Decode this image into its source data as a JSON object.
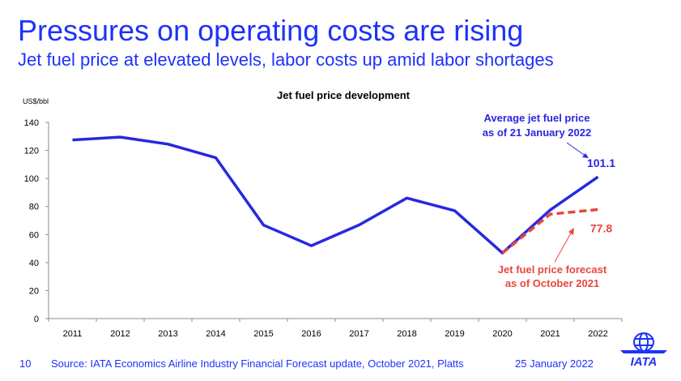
{
  "header": {
    "title": "Pressures on operating costs are rising",
    "subtitle": "Jet fuel price at elevated levels, labor costs up amid labor shortages"
  },
  "chart_data": {
    "type": "line",
    "title": "Jet fuel price development",
    "ylabel": "US$/bbl",
    "xlabel": "",
    "ylim": [
      0,
      140
    ],
    "yticks": [
      0,
      20,
      40,
      60,
      80,
      100,
      120,
      140
    ],
    "categories": [
      "2011",
      "2012",
      "2013",
      "2014",
      "2015",
      "2016",
      "2017",
      "2018",
      "2019",
      "2020",
      "2021",
      "2022"
    ],
    "series": [
      {
        "name": "Average jet fuel price",
        "style": "solid",
        "color": "#2828e0",
        "points": [
          {
            "x": "2011",
            "y": 127.5
          },
          {
            "x": "2012",
            "y": 129.5
          },
          {
            "x": "2013",
            "y": 124.5
          },
          {
            "x": "2014",
            "y": 114.8
          },
          {
            "x": "2015",
            "y": 66.7
          },
          {
            "x": "2016",
            "y": 52.0
          },
          {
            "x": "2017",
            "y": 66.8
          },
          {
            "x": "2018",
            "y": 86.0
          },
          {
            "x": "2019",
            "y": 77.0
          },
          {
            "x": "2020",
            "y": 46.8
          },
          {
            "x": "2021",
            "y": 77.5
          },
          {
            "x": "2022",
            "y": 101.1
          }
        ]
      },
      {
        "name": "Jet fuel price forecast",
        "style": "dashed",
        "color": "#e8473c",
        "points": [
          {
            "x": "2020",
            "y": 46.8
          },
          {
            "x": "2021",
            "y": 74.5
          },
          {
            "x": "2022",
            "y": 77.8
          }
        ]
      }
    ],
    "annotations": [
      {
        "series": 0,
        "label_lines": [
          "Average jet fuel price",
          "as of 21 January 2022"
        ],
        "value": "101.1",
        "color": "#2828e0"
      },
      {
        "series": 1,
        "label_lines": [
          "Jet fuel price forecast",
          "as of October 2021"
        ],
        "value": "77.8",
        "color": "#e8473c"
      }
    ],
    "grid": false,
    "legend": "none"
  },
  "footer": {
    "page": "10",
    "source": "Source: IATA Economics Airline Industry Financial Forecast update, October 2021, Platts",
    "date": "25 January 2022"
  },
  "brand": {
    "logo_text": "IATA",
    "color": "#1e32fa"
  }
}
